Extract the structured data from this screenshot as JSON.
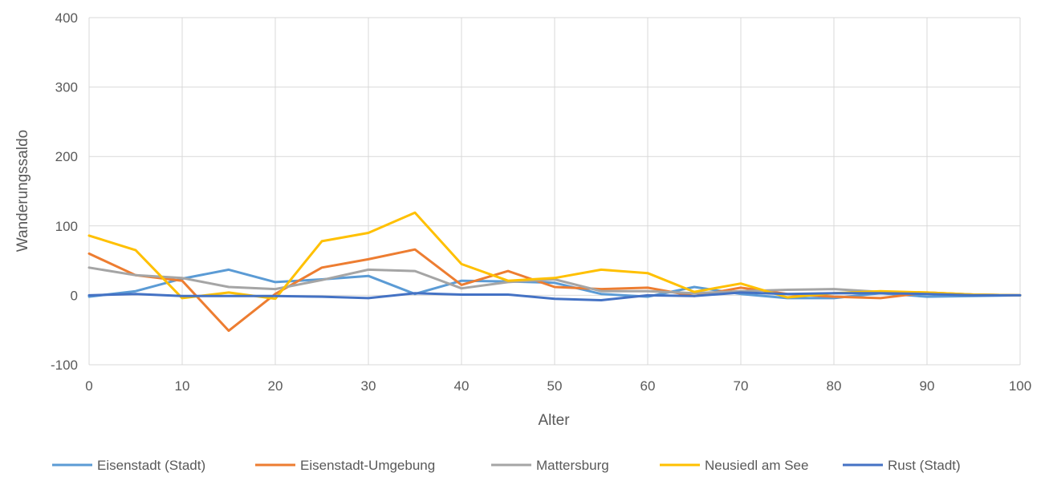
{
  "chart_data": {
    "type": "line",
    "title": "",
    "xlabel": "Alter",
    "ylabel": "Wanderungssaldo",
    "xlim": [
      0,
      100
    ],
    "ylim": [
      -100,
      400
    ],
    "xticks": [
      0,
      10,
      20,
      30,
      40,
      50,
      60,
      70,
      80,
      90,
      100
    ],
    "yticks": [
      -100,
      0,
      100,
      200,
      300,
      400
    ],
    "grid": true,
    "legend_position": "bottom",
    "x": [
      0,
      5,
      10,
      15,
      20,
      25,
      30,
      35,
      40,
      45,
      50,
      55,
      60,
      65,
      70,
      75,
      80,
      85,
      90,
      95,
      100
    ],
    "series": [
      {
        "name": "Eisenstadt (Stadt)",
        "color": "#5b9bd5",
        "values": [
          -2,
          6,
          24,
          37,
          19,
          23,
          28,
          2,
          21,
          20,
          18,
          2,
          -2,
          12,
          2,
          -4,
          -4,
          3,
          -2,
          -1,
          0
        ]
      },
      {
        "name": "Eisenstadt-Umgebung",
        "color": "#ed7d31",
        "values": [
          60,
          29,
          21,
          -51,
          2,
          40,
          52,
          66,
          15,
          35,
          12,
          9,
          11,
          -1,
          11,
          2,
          -2,
          -4,
          4,
          1,
          0
        ]
      },
      {
        "name": "Mattersburg",
        "color": "#a5a5a5",
        "values": [
          40,
          29,
          25,
          12,
          9,
          22,
          37,
          35,
          10,
          19,
          23,
          6,
          6,
          3,
          6,
          8,
          9,
          5,
          4,
          1,
          0
        ]
      },
      {
        "name": "Neusiedl am See",
        "color": "#ffc000",
        "values": [
          86,
          65,
          -4,
          4,
          -5,
          78,
          90,
          119,
          45,
          21,
          25,
          37,
          32,
          5,
          17,
          -3,
          3,
          6,
          4,
          1,
          0
        ]
      },
      {
        "name": "Rust (Stadt)",
        "color": "#4472c4",
        "values": [
          0,
          2,
          -1,
          -1,
          -1,
          -2,
          -4,
          3,
          1,
          1,
          -5,
          -7,
          0,
          -1,
          4,
          2,
          3,
          3,
          2,
          0,
          0
        ]
      }
    ]
  }
}
